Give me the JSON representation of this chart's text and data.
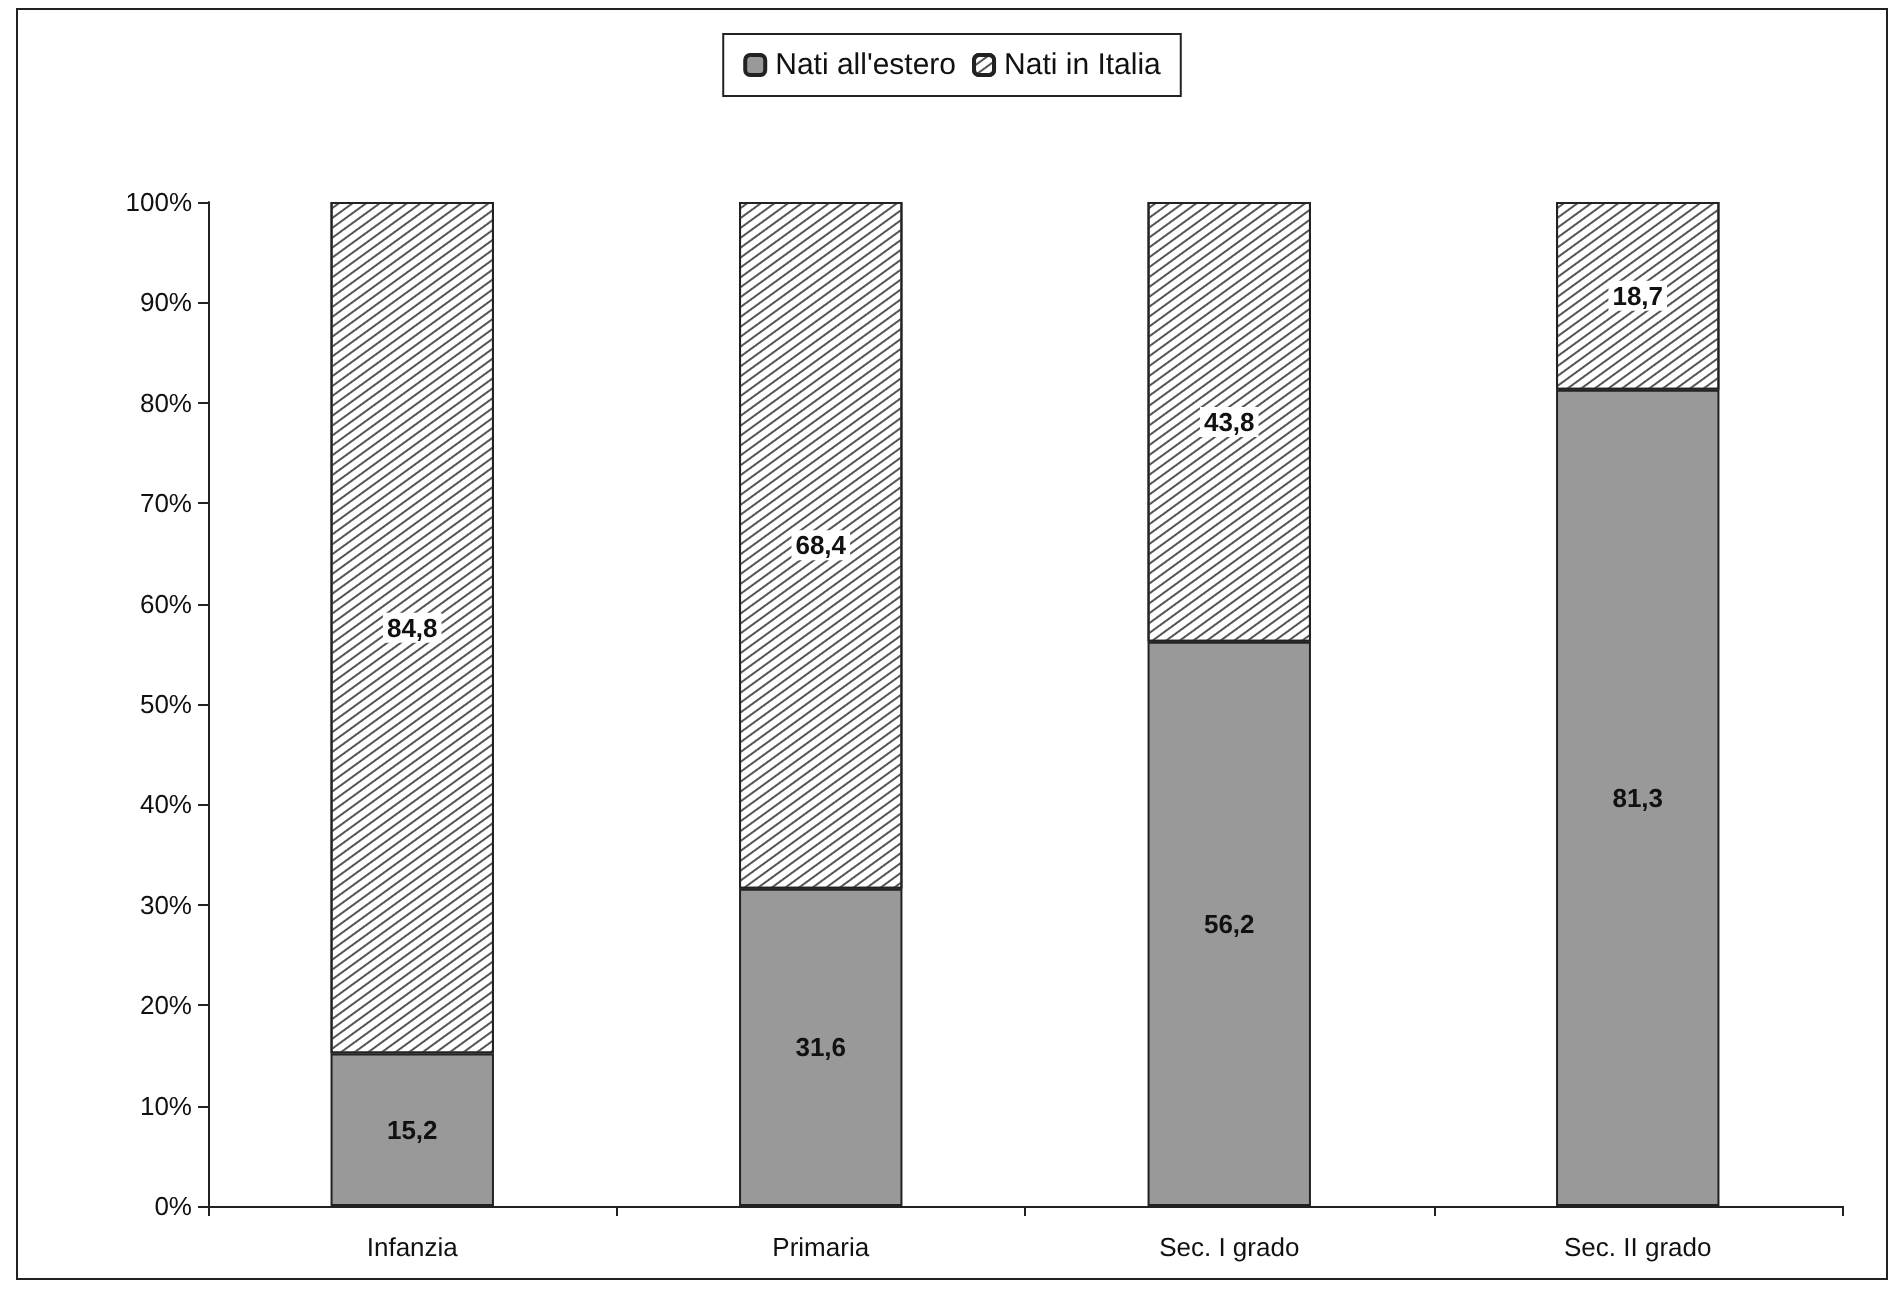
{
  "chart_data": {
    "type": "bar",
    "stacked": true,
    "categories": [
      "Infanzia",
      "Primaria",
      "Sec. I grado",
      "Sec. II grado"
    ],
    "series": [
      {
        "name": "Nati all'estero",
        "color": "#999999",
        "values": [
          15.2,
          31.6,
          56.2,
          81.3
        ],
        "value_labels": [
          "15,2",
          "31,6",
          "56,2",
          "81,3"
        ]
      },
      {
        "name": "Nati in Italia",
        "color": "#ffffff",
        "values": [
          84.8,
          68.4,
          43.8,
          18.7
        ],
        "value_labels": [
          "84,8",
          "68,4",
          "43,8",
          "18,7"
        ]
      }
    ],
    "ylim": [
      0,
      100
    ],
    "yticks": [
      {
        "value": 0,
        "label": "0%"
      },
      {
        "value": 10,
        "label": "10%"
      },
      {
        "value": 20,
        "label": "20%"
      },
      {
        "value": 30,
        "label": "30%"
      },
      {
        "value": 40,
        "label": "40%"
      },
      {
        "value": 50,
        "label": "50%"
      },
      {
        "value": 60,
        "label": "60%"
      },
      {
        "value": 70,
        "label": "70%"
      },
      {
        "value": 80,
        "label": "80%"
      },
      {
        "value": 90,
        "label": "90%"
      },
      {
        "value": 100,
        "label": "100%"
      }
    ],
    "grid": false,
    "legend": "top"
  }
}
